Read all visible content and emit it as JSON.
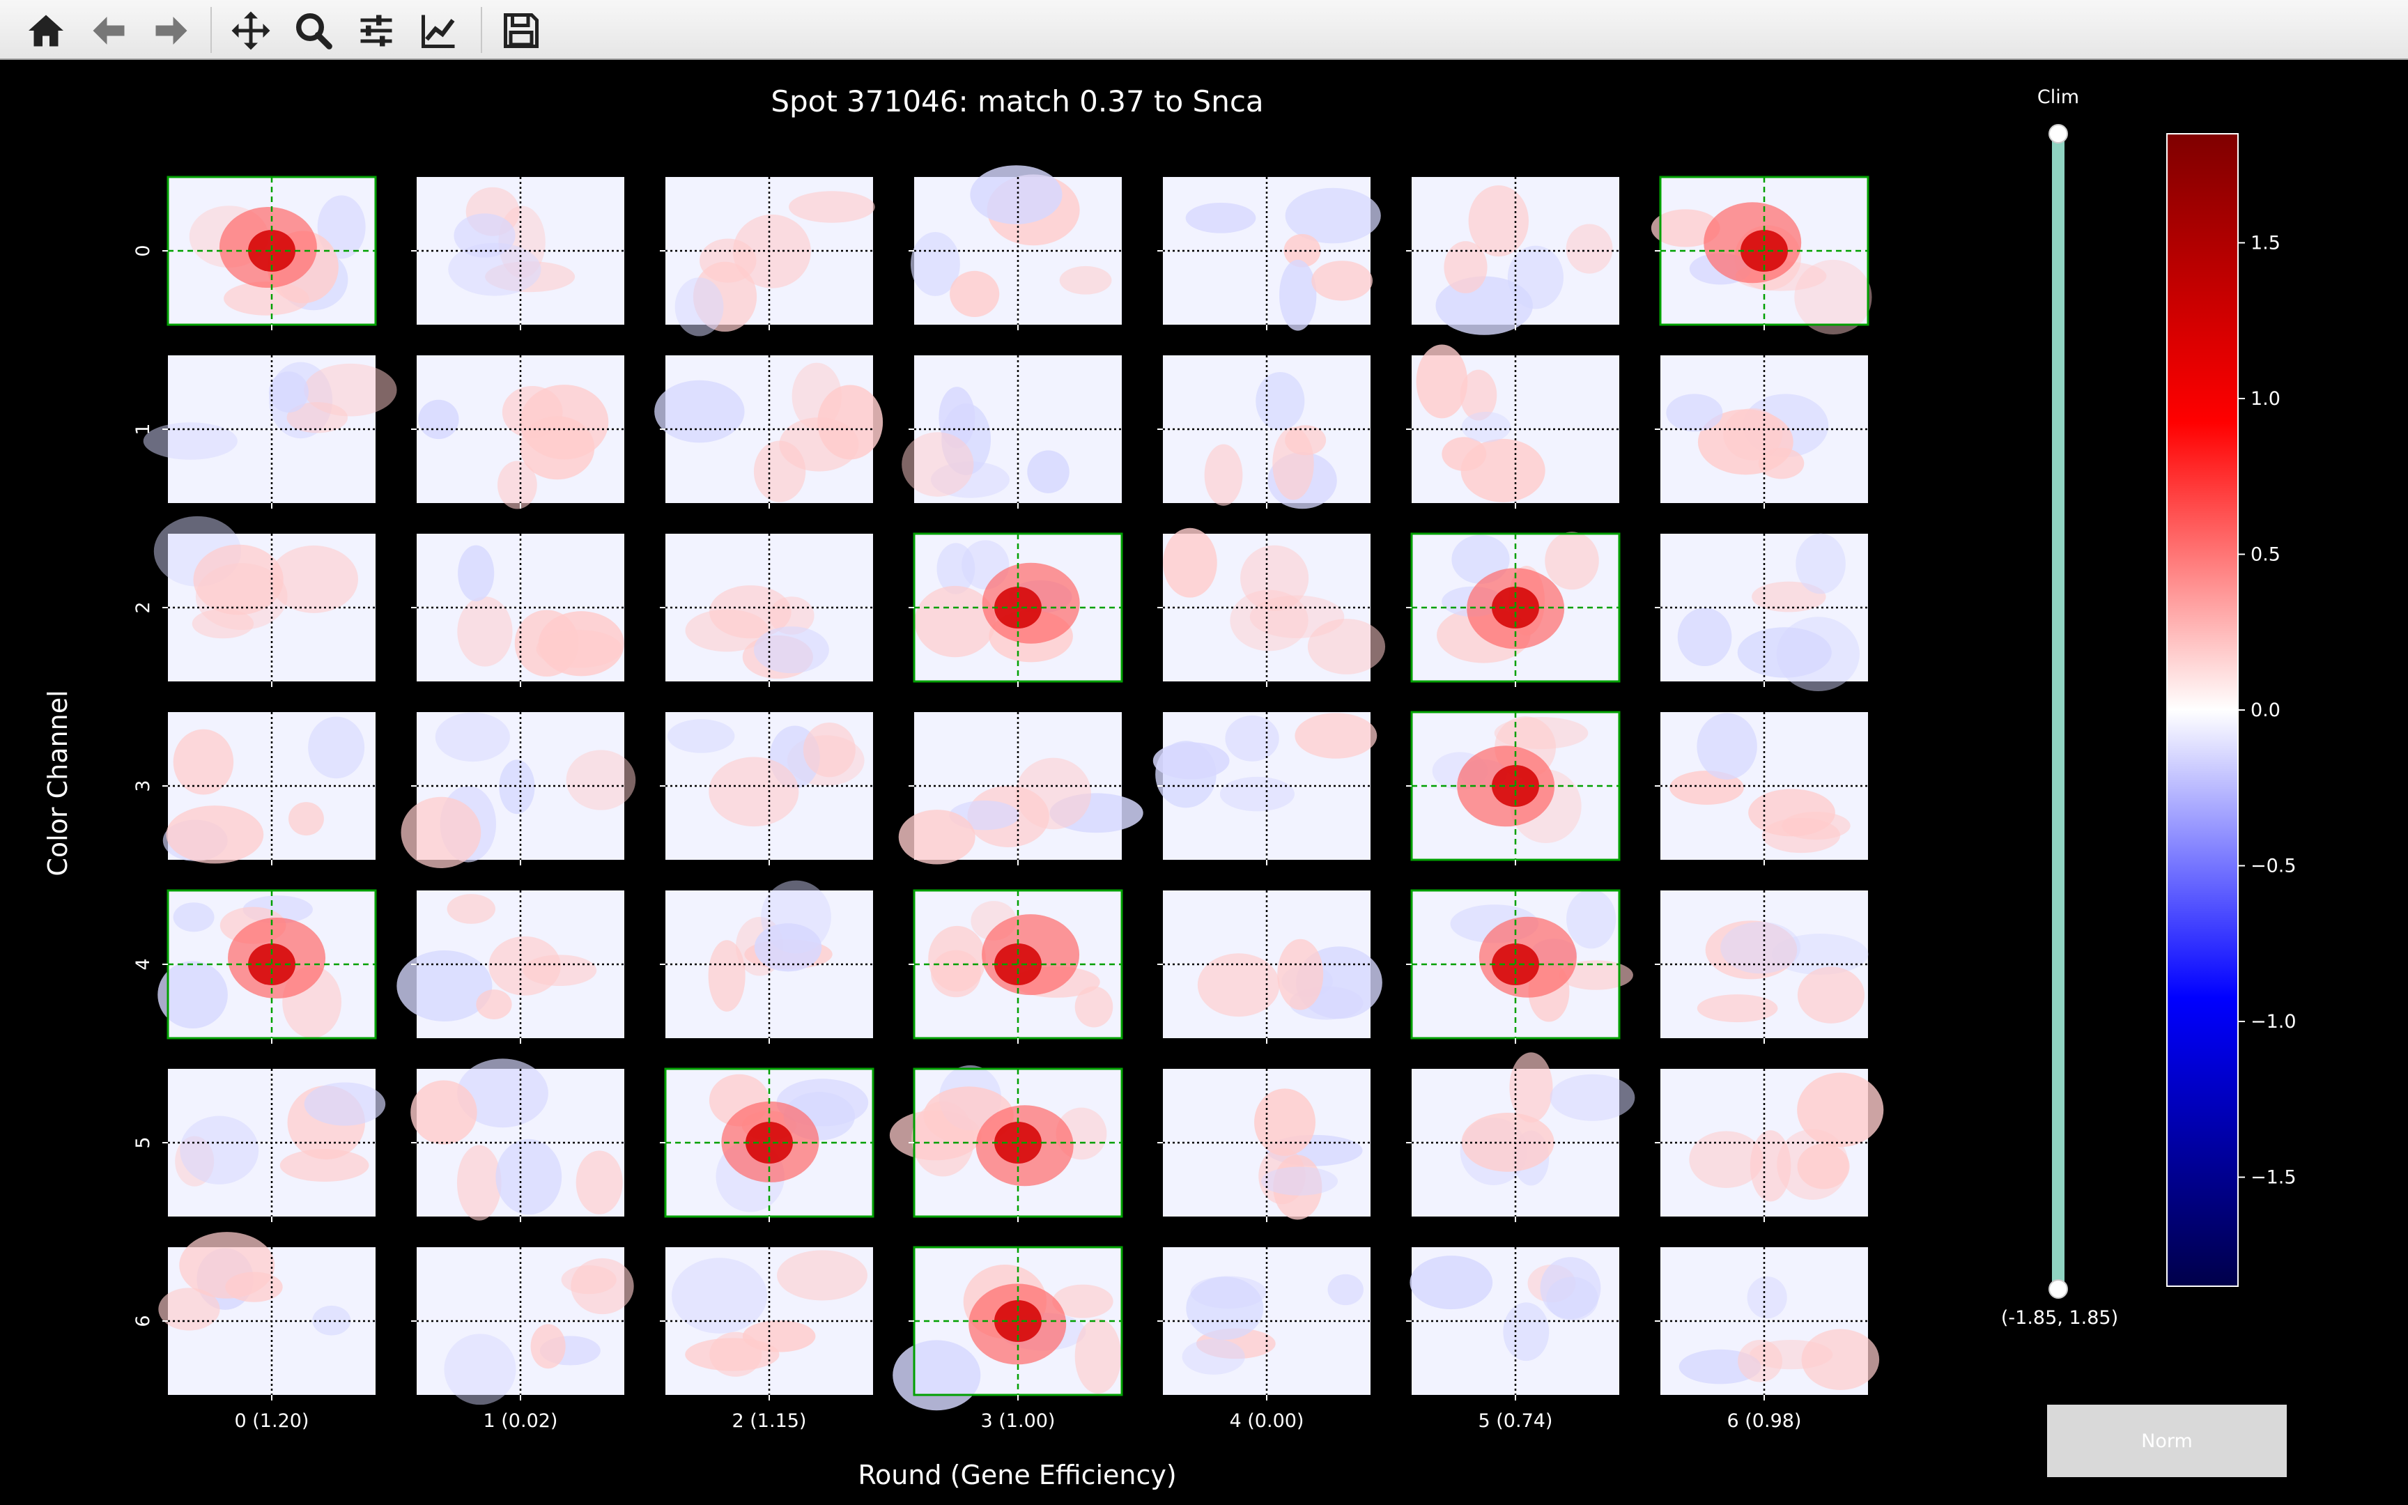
{
  "toolbar": {
    "buttons": [
      {
        "name": "home-button",
        "icon": "home-icon"
      },
      {
        "name": "back-button",
        "icon": "arrow-left-icon"
      },
      {
        "name": "forward-button",
        "icon": "arrow-right-icon"
      },
      {
        "name": "pan-button",
        "icon": "move-icon"
      },
      {
        "name": "zoom-button",
        "icon": "magnifier-icon"
      },
      {
        "name": "configure-subplots-button",
        "icon": "sliders-icon"
      },
      {
        "name": "edit-axis-button",
        "icon": "line-chart-icon"
      },
      {
        "name": "save-button",
        "icon": "floppy-disk-icon"
      }
    ]
  },
  "figure": {
    "title": "Spot 371046: match 0.37 to Snca",
    "xlabel": "Round (Gene Efficiency)",
    "ylabel": "Color Channel",
    "round_labels": [
      "0 (1.20)",
      "1 (0.02)",
      "2 (1.15)",
      "3 (1.00)",
      "4 (0.00)",
      "5 (0.74)",
      "6 (0.98)"
    ],
    "channel_labels": [
      "0",
      "1",
      "2",
      "3",
      "4",
      "5",
      "6"
    ],
    "highlighted_tiles": [
      [
        0,
        0
      ],
      [
        0,
        6
      ],
      [
        2,
        3
      ],
      [
        2,
        5
      ],
      [
        3,
        5
      ],
      [
        4,
        0
      ],
      [
        4,
        3
      ],
      [
        4,
        5
      ],
      [
        5,
        2
      ],
      [
        5,
        3
      ],
      [
        6,
        3
      ]
    ],
    "colors": {
      "positive": "#8b0000",
      "negative": "#00004a",
      "neutral": "#ffffff",
      "highlight": "#00a000"
    }
  },
  "clim": {
    "label": "Clim",
    "value": "(-1.85, 1.85)",
    "min": -1.85,
    "max": 1.85,
    "track_color": "#8fd3c1"
  },
  "colorbar": {
    "ticks": [
      "1.5",
      "1.0",
      "0.5",
      "0.0",
      "−0.5",
      "−1.0",
      "−1.5"
    ],
    "tick_values": [
      1.5,
      1.0,
      0.5,
      0.0,
      -0.5,
      -1.0,
      -1.5
    ],
    "range": [
      -1.85,
      1.85
    ]
  },
  "norm_button": {
    "label": "Norm"
  }
}
